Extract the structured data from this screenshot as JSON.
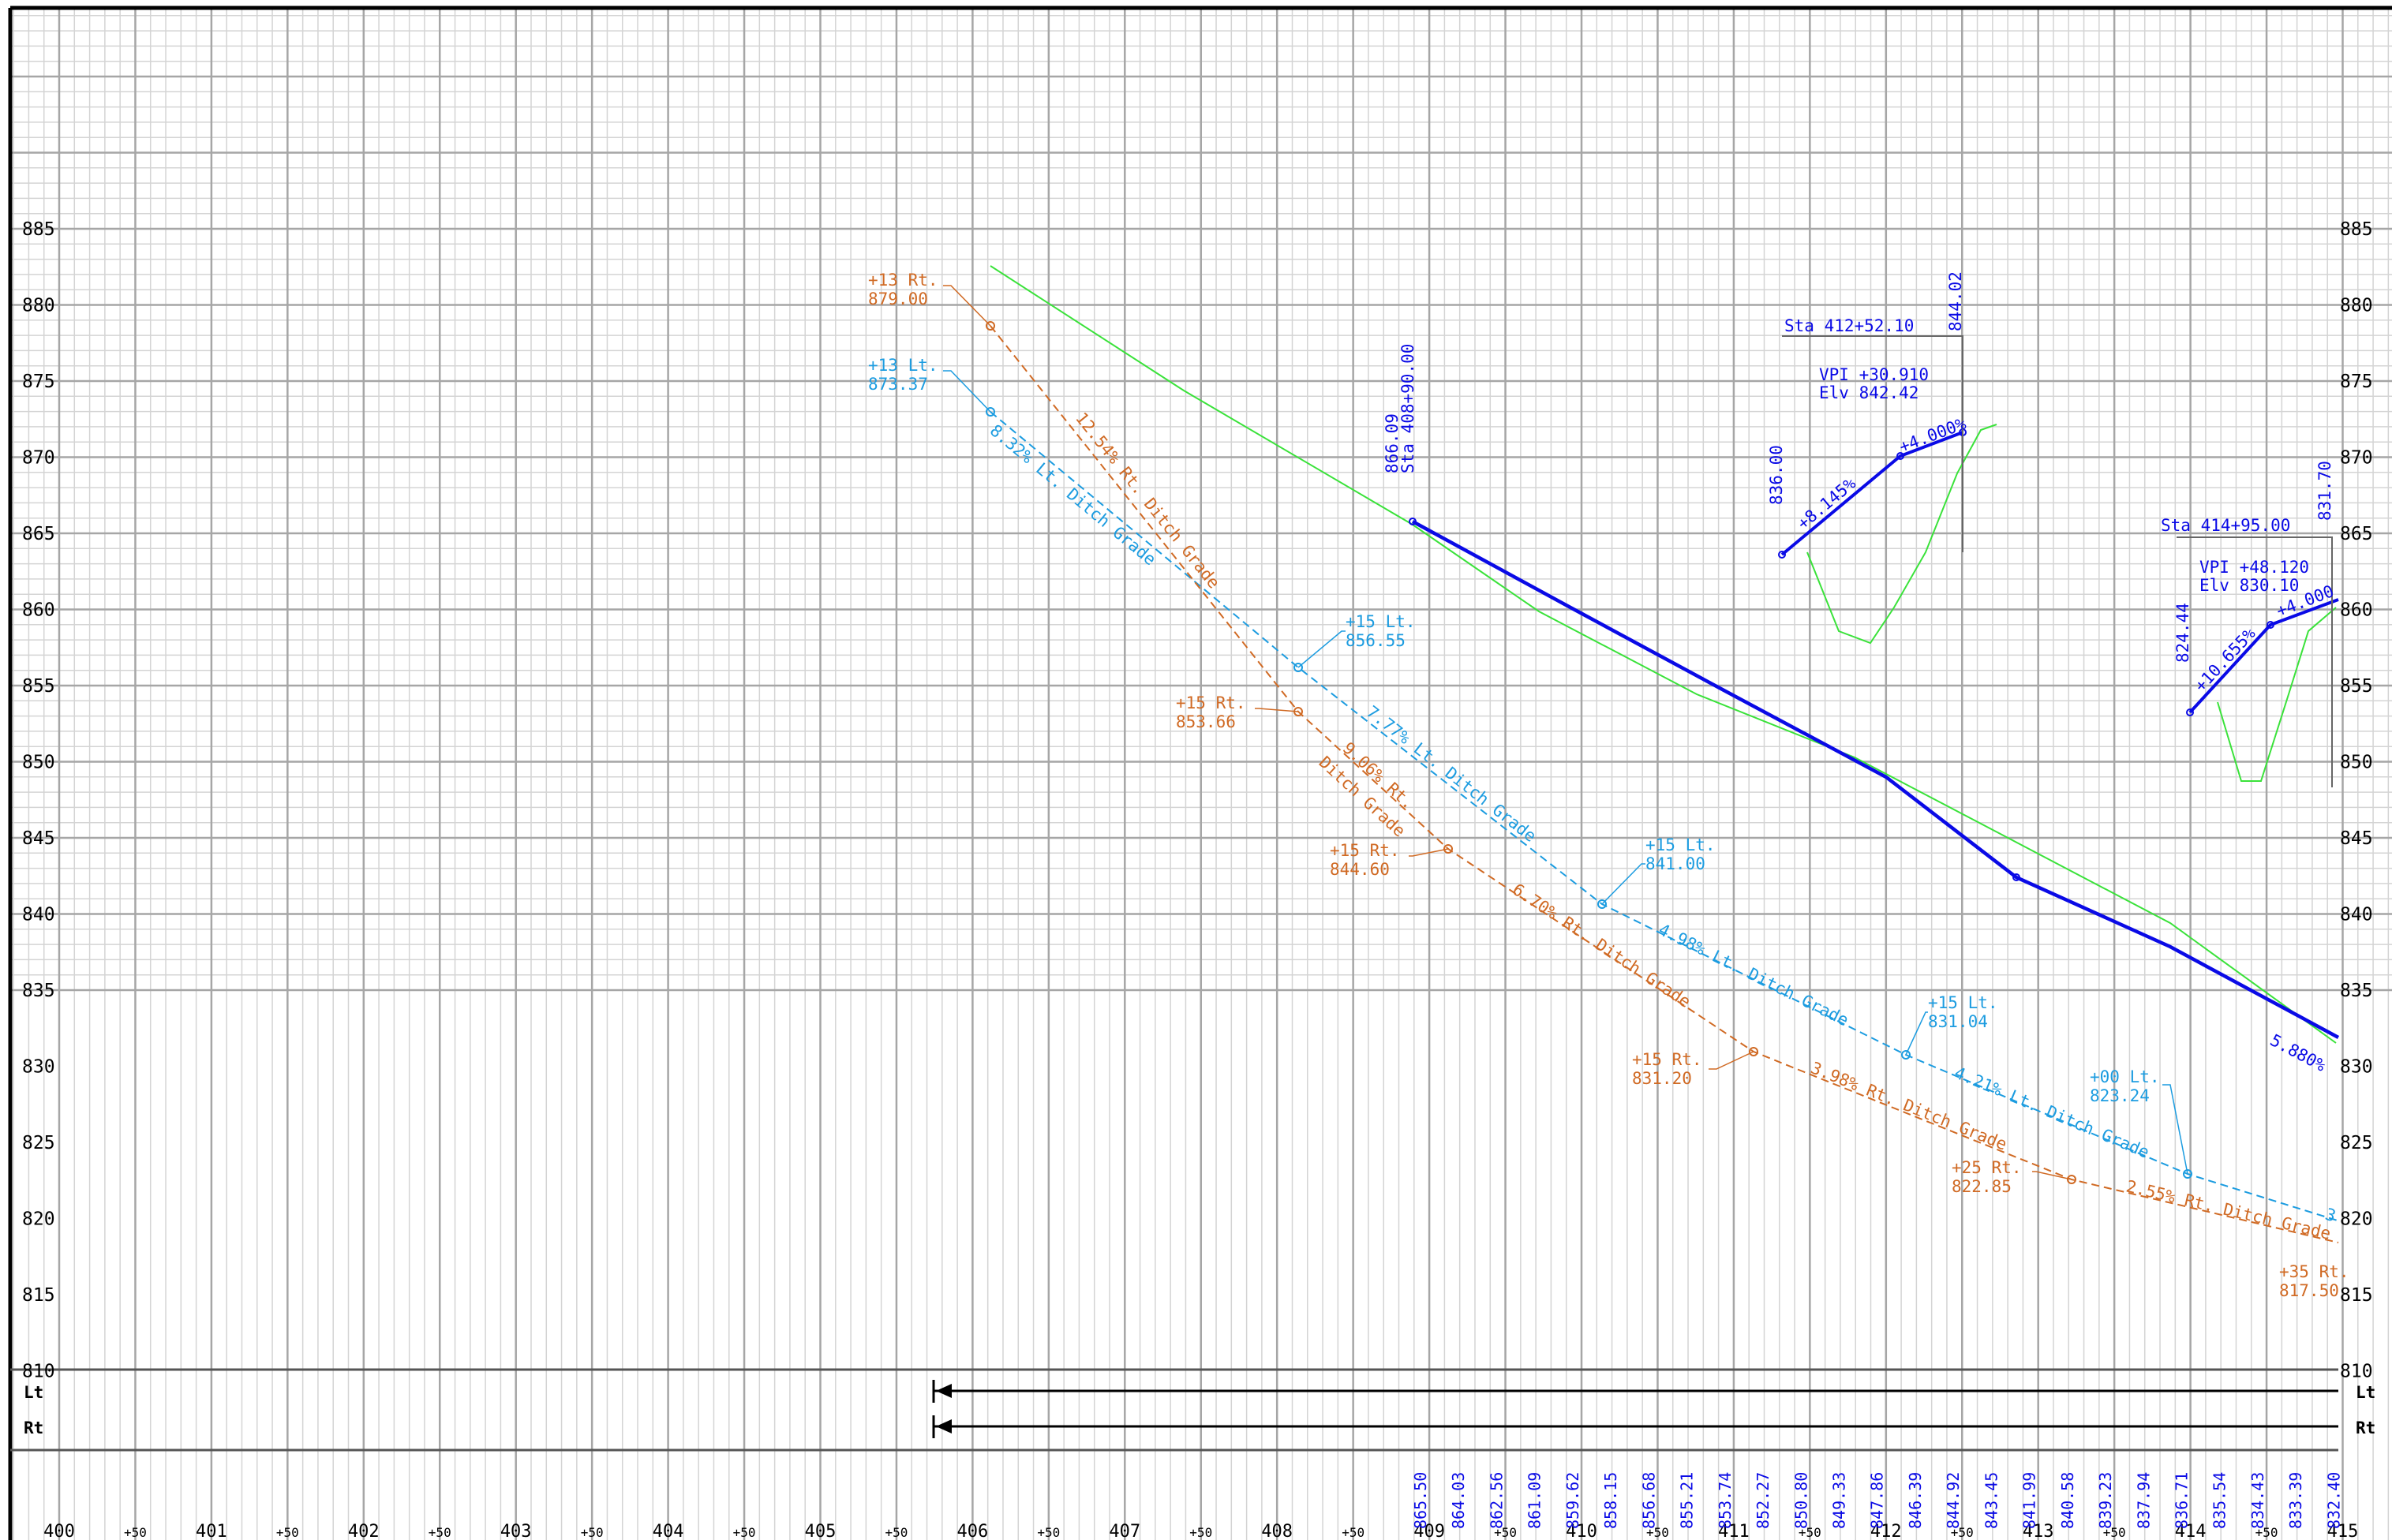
{
  "elev_labels": [
    "885",
    "880",
    "875",
    "870",
    "865",
    "860",
    "855",
    "850",
    "845",
    "840",
    "835",
    "830",
    "825",
    "820",
    "815",
    "810"
  ],
  "station_labels": [
    "400",
    "+50",
    "401",
    "+50",
    "402",
    "+50",
    "403",
    "+50",
    "404",
    "+50",
    "405",
    "+50",
    "406",
    "+50",
    "407",
    "+50",
    "408",
    "+50",
    "409",
    "+50",
    "410",
    "+50",
    "411",
    "+50",
    "412",
    "+50",
    "413",
    "+50",
    "414",
    "+50",
    "415"
  ],
  "offset_bars": [
    {
      "label": "Lt"
    },
    {
      "label": "Rt"
    }
  ],
  "bottom_elevations": [
    "865.50",
    "864.03",
    "862.56",
    "861.09",
    "859.62",
    "858.15",
    "856.68",
    "855.21",
    "853.74",
    "852.27",
    "850.80",
    "849.33",
    "847.86",
    "846.39",
    "844.92",
    "843.45",
    "841.99",
    "840.58",
    "839.23",
    "837.94",
    "836.71",
    "835.54",
    "834.43",
    "833.39",
    "832.40"
  ],
  "callouts": {
    "c1": {
      "line1": "+13 Rt.",
      "line2": "879.00"
    },
    "c2": {
      "line1": "+13 Lt.",
      "line2": "873.37"
    },
    "c3": {
      "line1": "+15 Lt.",
      "line2": "856.55"
    },
    "c4": {
      "line1": "+15 Rt.",
      "line2": "853.66"
    },
    "c5": {
      "line1": "+15 Rt.",
      "line2": "844.60"
    },
    "c6": {
      "line1": "+15 Lt.",
      "line2": "841.00"
    },
    "c7": {
      "line1": "+15 Rt.",
      "line2": "831.20"
    },
    "c8": {
      "line1": "+15 Lt.",
      "line2": "831.04"
    },
    "c9": {
      "line1": "+25 Rt.",
      "line2": "822.85"
    },
    "c10": {
      "line1": "+00 Lt.",
      "line2": "823.24"
    },
    "c11": {
      "line1": "+35 Rt.",
      "line2": "817.50"
    }
  },
  "grade_labels": {
    "g1": "12.54% Rt. Ditch Grade",
    "g2": "8.32% Lt. Ditch Grade",
    "g3": "7.77% Lt. Ditch Grade",
    "g4a": "9.06% Rt.",
    "g4b": "Ditch Grade",
    "g5": "6.70% Rt. Ditch Grade",
    "g6": "4.98% Lt. Ditch Grade",
    "g7": "3.98% Rt. Ditch Grade",
    "g8": "4.21% Lt. Ditch Grade",
    "g9": "2.55% Rt. Ditch Grade",
    "g10": "3"
  },
  "profile_labels": {
    "p1a": "866.09",
    "p1b": "Sta 408+90.00",
    "v1_sta": "Sta 412+52.10",
    "v1_elev_top": "844.02",
    "v1_vpi": "VPI +30.910",
    "v1_elv": "Elv 842.42",
    "v1_start": "836.00",
    "v1_g1": "+8.145%",
    "v1_g2": "+4.000%",
    "v2_sta": "Sta 414+95.00",
    "v2_elev_top": "831.70",
    "v2_vpi": "VPI +48.120",
    "v2_elv": "Elv 830.10",
    "v2_start": "824.44",
    "v2_g1": "+10.655%",
    "v2_g2": "+4.000",
    "grade_end": "5.880%"
  },
  "colors": {
    "grid_major": "#a6a6a6",
    "grid_minor": "#d4d4d4",
    "proposed_profile": "#0a0ae6",
    "existing_ground": "#3ae23a",
    "left_ditch": "#1c9ce0",
    "right_ditch": "#d06a24",
    "annotation_black": "#000000"
  }
}
